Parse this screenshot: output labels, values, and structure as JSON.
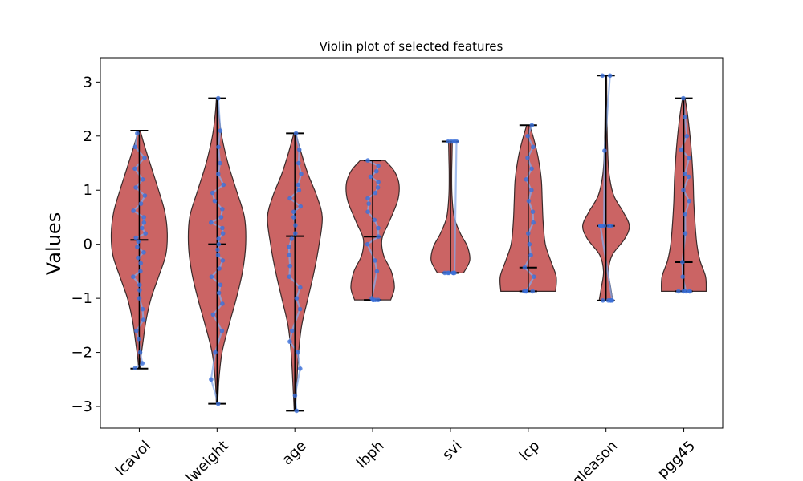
{
  "chart_data": {
    "type": "violin",
    "title": "Violin plot of selected features",
    "xlabel": "",
    "ylabel": "Values",
    "ylim": [
      -3.4,
      3.45
    ],
    "yticks": [
      -3,
      -2,
      -1,
      0,
      1,
      2,
      3
    ],
    "ytick_labels": [
      "−3",
      "−2",
      "−1",
      "0",
      "1",
      "2",
      "3"
    ],
    "categories": [
      "lcavol",
      "lweight",
      "age",
      "lbph",
      "svi",
      "lcp",
      "gleason",
      "pgg45"
    ],
    "colors": {
      "violin_fill": "#c44e4e",
      "violin_edge": "#3a2a2a",
      "points": "#3b6fd8",
      "lines": "#86a8e8",
      "whisker": "#000000"
    },
    "series": [
      {
        "category": "lcavol",
        "min": -2.3,
        "max": 2.1,
        "median": 0.08,
        "profile": [
          [
            -2.3,
            0.02
          ],
          [
            -2.1,
            0.05
          ],
          [
            -1.8,
            0.12
          ],
          [
            -1.4,
            0.22
          ],
          [
            -1.0,
            0.38
          ],
          [
            -0.6,
            0.62
          ],
          [
            -0.2,
            0.85
          ],
          [
            0.2,
            0.9
          ],
          [
            0.6,
            0.82
          ],
          [
            1.0,
            0.62
          ],
          [
            1.4,
            0.4
          ],
          [
            1.8,
            0.18
          ],
          [
            2.1,
            0.03
          ]
        ],
        "points": [
          -2.29,
          -2.2,
          -2.0,
          -1.75,
          -1.6,
          -1.4,
          -1.2,
          -1.0,
          -0.85,
          -0.75,
          -0.6,
          -0.5,
          -0.35,
          -0.25,
          -0.15,
          -0.05,
          0.05,
          0.12,
          0.2,
          0.3,
          0.4,
          0.5,
          0.62,
          0.75,
          0.9,
          1.05,
          1.2,
          1.4,
          1.6,
          1.8,
          2.05
        ]
      },
      {
        "category": "lweight",
        "min": -2.95,
        "max": 2.7,
        "median": 0.0,
        "profile": [
          [
            -2.95,
            0.02
          ],
          [
            -2.5,
            0.06
          ],
          [
            -2.0,
            0.16
          ],
          [
            -1.5,
            0.38
          ],
          [
            -1.0,
            0.62
          ],
          [
            -0.5,
            0.82
          ],
          [
            0.0,
            0.92
          ],
          [
            0.5,
            0.88
          ],
          [
            1.0,
            0.62
          ],
          [
            1.5,
            0.35
          ],
          [
            2.0,
            0.15
          ],
          [
            2.4,
            0.06
          ],
          [
            2.7,
            0.02
          ]
        ],
        "points": [
          -2.95,
          -2.5,
          -2.0,
          -1.6,
          -1.3,
          -1.1,
          -0.9,
          -0.75,
          -0.6,
          -0.45,
          -0.3,
          -0.2,
          -0.1,
          0.0,
          0.1,
          0.2,
          0.3,
          0.4,
          0.5,
          0.65,
          0.8,
          0.95,
          1.1,
          1.3,
          1.5,
          1.8,
          2.1,
          2.7
        ]
      },
      {
        "category": "age",
        "min": -3.08,
        "max": 2.05,
        "median": 0.15,
        "profile": [
          [
            -3.08,
            0.02
          ],
          [
            -2.6,
            0.06
          ],
          [
            -2.0,
            0.12
          ],
          [
            -1.5,
            0.22
          ],
          [
            -1.0,
            0.42
          ],
          [
            -0.5,
            0.62
          ],
          [
            0.0,
            0.78
          ],
          [
            0.5,
            0.88
          ],
          [
            0.9,
            0.7
          ],
          [
            1.3,
            0.42
          ],
          [
            1.7,
            0.2
          ],
          [
            2.05,
            0.03
          ]
        ],
        "points": [
          -3.08,
          -2.8,
          -2.3,
          -2.0,
          -1.8,
          -1.6,
          -1.2,
          -1.0,
          -0.8,
          -0.6,
          -0.4,
          -0.2,
          -0.05,
          0.1,
          0.2,
          0.35,
          0.5,
          0.6,
          0.7,
          0.85,
          1.0,
          1.1,
          1.3,
          1.5,
          1.75,
          2.05
        ]
      },
      {
        "category": "lbph",
        "min": -1.03,
        "max": 1.55,
        "median": 0.14,
        "profile": [
          [
            -1.03,
            0.58
          ],
          [
            -0.8,
            0.7
          ],
          [
            -0.5,
            0.6
          ],
          [
            -0.2,
            0.35
          ],
          [
            0.1,
            0.3
          ],
          [
            0.4,
            0.52
          ],
          [
            0.8,
            0.8
          ],
          [
            1.1,
            0.85
          ],
          [
            1.35,
            0.7
          ],
          [
            1.55,
            0.4
          ]
        ],
        "points": [
          -1.03,
          -1.03,
          -1.03,
          -1.03,
          -1.0,
          -0.5,
          -0.3,
          0.0,
          0.14,
          0.3,
          0.45,
          0.6,
          0.75,
          0.85,
          0.95,
          1.05,
          1.15,
          1.25,
          1.35,
          1.45,
          1.55
        ]
      },
      {
        "category": "svi",
        "min": -0.53,
        "max": 1.9,
        "median": -0.53,
        "profile": [
          [
            -0.53,
            0.42
          ],
          [
            -0.3,
            0.62
          ],
          [
            -0.05,
            0.55
          ],
          [
            0.2,
            0.32
          ],
          [
            0.5,
            0.12
          ],
          [
            0.9,
            0.05
          ],
          [
            1.3,
            0.04
          ],
          [
            1.6,
            0.05
          ],
          [
            1.9,
            0.06
          ]
        ],
        "points": [
          -0.53,
          -0.53,
          -0.53,
          -0.53,
          -0.53,
          -0.53,
          1.9,
          1.9,
          1.9,
          1.9
        ]
      },
      {
        "category": "lcp",
        "min": -0.87,
        "max": 2.2,
        "median": -0.43,
        "profile": [
          [
            -0.87,
            0.88
          ],
          [
            -0.6,
            0.9
          ],
          [
            -0.3,
            0.72
          ],
          [
            0.0,
            0.55
          ],
          [
            0.4,
            0.48
          ],
          [
            0.8,
            0.45
          ],
          [
            1.2,
            0.42
          ],
          [
            1.6,
            0.32
          ],
          [
            1.9,
            0.2
          ],
          [
            2.2,
            0.05
          ]
        ],
        "points": [
          -0.87,
          -0.87,
          -0.87,
          -0.87,
          -0.6,
          -0.43,
          -0.2,
          0.0,
          0.2,
          0.4,
          0.6,
          0.8,
          1.0,
          1.2,
          1.4,
          1.6,
          1.8,
          2.0,
          2.2
        ]
      },
      {
        "category": "gleason",
        "min": -1.04,
        "max": 3.12,
        "median": 0.34,
        "profile": [
          [
            -1.04,
            0.22
          ],
          [
            -0.8,
            0.15
          ],
          [
            -0.5,
            0.08
          ],
          [
            -0.2,
            0.2
          ],
          [
            0.1,
            0.6
          ],
          [
            0.34,
            0.75
          ],
          [
            0.6,
            0.55
          ],
          [
            0.9,
            0.25
          ],
          [
            1.3,
            0.1
          ],
          [
            1.8,
            0.05
          ],
          [
            2.4,
            0.03
          ],
          [
            3.12,
            0.02
          ]
        ],
        "points": [
          -1.04,
          -1.04,
          -1.04,
          -1.04,
          -1.04,
          0.34,
          0.34,
          0.34,
          0.34,
          0.34,
          0.34,
          1.73,
          3.12,
          3.12
        ]
      },
      {
        "category": "pgg45",
        "min": -0.87,
        "max": 2.7,
        "median": -0.33,
        "profile": [
          [
            -0.87,
            0.72
          ],
          [
            -0.6,
            0.7
          ],
          [
            -0.3,
            0.52
          ],
          [
            0.0,
            0.42
          ],
          [
            0.4,
            0.36
          ],
          [
            0.8,
            0.32
          ],
          [
            1.2,
            0.3
          ],
          [
            1.6,
            0.26
          ],
          [
            2.0,
            0.2
          ],
          [
            2.4,
            0.12
          ],
          [
            2.7,
            0.04
          ]
        ],
        "points": [
          -0.87,
          -0.87,
          -0.87,
          -0.87,
          -0.87,
          -0.6,
          -0.33,
          0.2,
          0.55,
          0.8,
          1.0,
          1.25,
          1.3,
          1.6,
          1.75,
          2.0,
          2.35,
          2.7
        ]
      }
    ]
  }
}
